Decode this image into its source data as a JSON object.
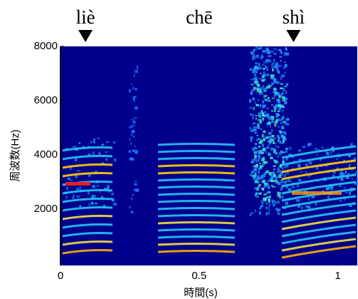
{
  "chart_data": {
    "type": "spectrogram",
    "xlabel": "時間(s)",
    "ylabel": "周波数(Hz)",
    "xlim": [
      0,
      1.07
    ],
    "xticks": [
      0,
      0.5,
      1
    ],
    "ylim": [
      0,
      8000
    ],
    "yticks": [
      2000,
      4000,
      6000,
      8000
    ],
    "background": "#00008c",
    "annotations": [
      {
        "text": "liè",
        "x": 0.09,
        "arrow": true
      },
      {
        "text": "chē",
        "x": 0.5,
        "arrow": false
      },
      {
        "text": "shì",
        "x": 0.84,
        "arrow": true
      }
    ]
  }
}
